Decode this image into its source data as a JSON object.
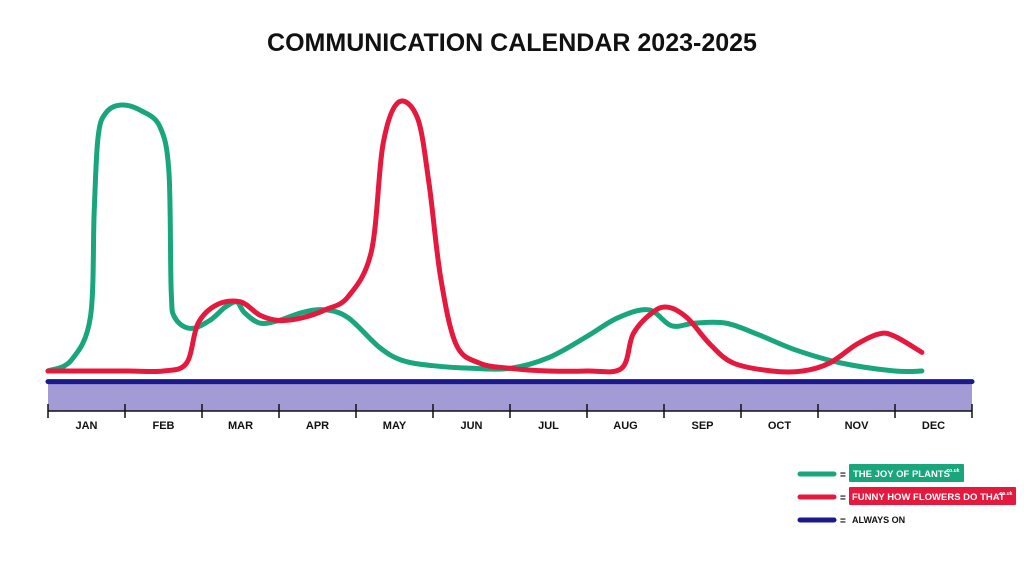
{
  "chart_data": {
    "type": "line",
    "title": "COMMUNICATION CALENDAR 2023-2025",
    "categories": [
      "JAN",
      "FEB",
      "MAR",
      "APR",
      "MAY",
      "JUN",
      "JUL",
      "AUG",
      "SEP",
      "OCT",
      "NOV",
      "DEC"
    ],
    "xlim": [
      0,
      12
    ],
    "ylim": [
      0,
      100
    ],
    "grid": false,
    "legend_position": "bottom-right",
    "series": [
      {
        "name": "THE JOY OF PLANTS",
        "name_suffix": ".co.uk",
        "color": "#19a67c",
        "points": [
          [
            0,
            0
          ],
          [
            0.3,
            4
          ],
          [
            0.55,
            20
          ],
          [
            0.6,
            60
          ],
          [
            0.65,
            88
          ],
          [
            0.75,
            97
          ],
          [
            0.95,
            100
          ],
          [
            1.2,
            98
          ],
          [
            1.45,
            92
          ],
          [
            1.57,
            75
          ],
          [
            1.6,
            30
          ],
          [
            1.65,
            20
          ],
          [
            1.85,
            16
          ],
          [
            2.1,
            19
          ],
          [
            2.3,
            24
          ],
          [
            2.45,
            26
          ],
          [
            2.55,
            22
          ],
          [
            2.75,
            18
          ],
          [
            3.0,
            19
          ],
          [
            3.3,
            22
          ],
          [
            3.6,
            23
          ],
          [
            3.9,
            20
          ],
          [
            4.3,
            9
          ],
          [
            4.6,
            4
          ],
          [
            5.0,
            2
          ],
          [
            5.5,
            1
          ],
          [
            6.0,
            1
          ],
          [
            6.5,
            5
          ],
          [
            7.0,
            13
          ],
          [
            7.4,
            20
          ],
          [
            7.8,
            23
          ],
          [
            8.1,
            17
          ],
          [
            8.4,
            18
          ],
          [
            8.8,
            18
          ],
          [
            9.2,
            14
          ],
          [
            9.7,
            8
          ],
          [
            10.3,
            3
          ],
          [
            11.0,
            0
          ],
          [
            11.35,
            0
          ]
        ]
      },
      {
        "name": "FUNNY HOW FLOWERS DO THAT",
        "name_suffix": ".co.uk",
        "color": "#e5183d",
        "points": [
          [
            0,
            0
          ],
          [
            1.0,
            0
          ],
          [
            1.5,
            0
          ],
          [
            1.8,
            3
          ],
          [
            1.95,
            18
          ],
          [
            2.2,
            25
          ],
          [
            2.5,
            26
          ],
          [
            2.75,
            21
          ],
          [
            3.0,
            19
          ],
          [
            3.3,
            20
          ],
          [
            3.6,
            23
          ],
          [
            3.9,
            28
          ],
          [
            4.2,
            45
          ],
          [
            4.35,
            85
          ],
          [
            4.55,
            101
          ],
          [
            4.8,
            95
          ],
          [
            4.95,
            70
          ],
          [
            5.1,
            35
          ],
          [
            5.3,
            10
          ],
          [
            5.6,
            3
          ],
          [
            6.0,
            1
          ],
          [
            6.5,
            0
          ],
          [
            7.0,
            0
          ],
          [
            7.45,
            1
          ],
          [
            7.6,
            14
          ],
          [
            7.85,
            22
          ],
          [
            8.05,
            24
          ],
          [
            8.3,
            20
          ],
          [
            8.6,
            10
          ],
          [
            8.9,
            3
          ],
          [
            9.4,
            0
          ],
          [
            9.8,
            0
          ],
          [
            10.15,
            3
          ],
          [
            10.5,
            10
          ],
          [
            10.8,
            14
          ],
          [
            11.0,
            13
          ],
          [
            11.35,
            7
          ]
        ]
      },
      {
        "name": "ALWAYS ON",
        "color": "#1a1a8c",
        "points": [
          [
            0,
            -4
          ],
          [
            12,
            -4
          ]
        ]
      }
    ]
  }
}
